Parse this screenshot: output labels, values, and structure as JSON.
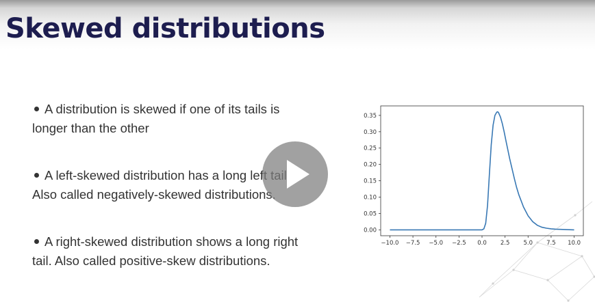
{
  "slide": {
    "title": "Skewed distributions",
    "bullets": [
      {
        "line1": "A distribution is skewed if one of its tails is",
        "line2": "longer than the other"
      },
      {
        "line1": "A left-skewed distribution has a long left tail.",
        "line2": "Also called negatively-skewed distributions."
      },
      {
        "line1": "A right-skewed distribution shows a long right",
        "line2": "tail. Also called positive-skew distributions."
      }
    ]
  },
  "player": {
    "play_icon": "play-icon"
  },
  "colors": {
    "title": "#1d1d4f",
    "line": "#3878b4",
    "text": "#333333"
  },
  "chart_data": {
    "type": "line",
    "xlim": [
      -10.0,
      10.0
    ],
    "ylim": [
      0.0,
      0.37
    ],
    "xticks": [
      "−10.0",
      "−7.5",
      "−5.0",
      "−2.5",
      "0.0",
      "2.5",
      "5.0",
      "7.5",
      "10.0"
    ],
    "yticks": [
      "0.00",
      "0.05",
      "0.10",
      "0.15",
      "0.20",
      "0.25",
      "0.30",
      "0.35"
    ],
    "grid": false,
    "series": [
      {
        "x": [
          -10.0,
          -5.0,
          0.0,
          0.2,
          0.4,
          0.6,
          0.8,
          1.0,
          1.2,
          1.4,
          1.6,
          1.7,
          1.8,
          2.0,
          2.2,
          2.4,
          2.6,
          2.8,
          3.0,
          3.25,
          3.5,
          3.75,
          4.0,
          4.5,
          5.0,
          5.5,
          6.0,
          6.5,
          7.0,
          7.5,
          8.0,
          9.0,
          10.0
        ],
        "y": [
          0.0,
          0.0,
          0.0,
          0.003,
          0.02,
          0.075,
          0.17,
          0.26,
          0.32,
          0.35,
          0.36,
          0.361,
          0.358,
          0.345,
          0.325,
          0.3,
          0.272,
          0.245,
          0.218,
          0.188,
          0.158,
          0.13,
          0.107,
          0.07,
          0.043,
          0.025,
          0.014,
          0.008,
          0.005,
          0.003,
          0.002,
          0.001,
          0.0
        ]
      }
    ]
  }
}
